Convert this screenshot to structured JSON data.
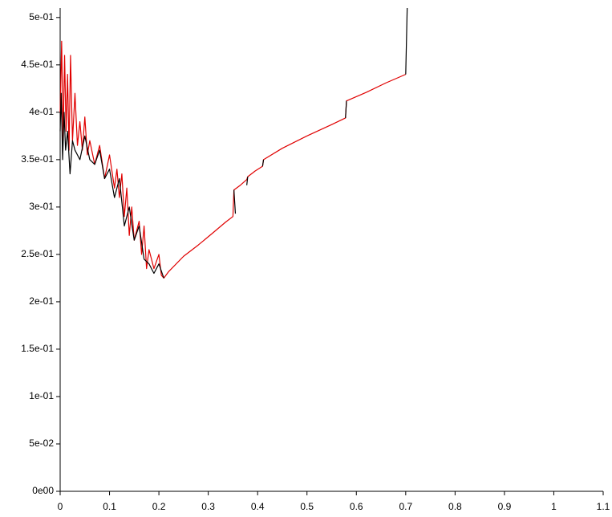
{
  "chart_data": {
    "type": "line",
    "xlim": [
      0,
      1.1
    ],
    "ylim": [
      0,
      0.51
    ],
    "xticks": [
      0,
      0.1,
      0.2,
      0.3,
      0.4,
      0.5,
      0.6,
      0.7,
      0.8,
      0.9,
      1,
      1.1
    ],
    "yticks": [
      {
        "value": 0,
        "label": "0e00"
      },
      {
        "value": 0.05,
        "label": "5e-02"
      },
      {
        "value": 0.1,
        "label": "1e-01"
      },
      {
        "value": 0.15,
        "label": "1.5e-01"
      },
      {
        "value": 0.2,
        "label": "2e-01"
      },
      {
        "value": 0.25,
        "label": "2.5e-01"
      },
      {
        "value": 0.3,
        "label": "3e-01"
      },
      {
        "value": 0.35,
        "label": "3.5e-01"
      },
      {
        "value": 0.4,
        "label": "4e-01"
      },
      {
        "value": 0.45,
        "label": "4.5e-01"
      },
      {
        "value": 0.5,
        "label": "5e-01"
      }
    ],
    "series": [
      {
        "color": "#e00000",
        "x": [
          0,
          0.003,
          0.006,
          0.009,
          0.012,
          0.015,
          0.018,
          0.021,
          0.025,
          0.03,
          0.035,
          0.04,
          0.045,
          0.05,
          0.055,
          0.06,
          0.07,
          0.08,
          0.09,
          0.1,
          0.11,
          0.115,
          0.12,
          0.125,
          0.13,
          0.135,
          0.14,
          0.145,
          0.15,
          0.16,
          0.165,
          0.17,
          0.175,
          0.18,
          0.19,
          0.2,
          0.205,
          0.21,
          0.22,
          0.25,
          0.28,
          0.31,
          0.335,
          0.35,
          0.352,
          0.365,
          0.378,
          0.38,
          0.395,
          0.41,
          0.412,
          0.45,
          0.5,
          0.55,
          0.578,
          0.58,
          0.62,
          0.66,
          0.7
        ],
        "values": [
          0.4,
          0.475,
          0.37,
          0.46,
          0.38,
          0.44,
          0.36,
          0.46,
          0.37,
          0.42,
          0.365,
          0.39,
          0.36,
          0.395,
          0.355,
          0.37,
          0.345,
          0.365,
          0.33,
          0.355,
          0.32,
          0.34,
          0.31,
          0.335,
          0.29,
          0.32,
          0.27,
          0.3,
          0.265,
          0.285,
          0.25,
          0.28,
          0.235,
          0.255,
          0.235,
          0.25,
          0.228,
          0.225,
          0.232,
          0.248,
          0.26,
          0.273,
          0.284,
          0.29,
          0.318,
          0.323,
          0.329,
          0.332,
          0.338,
          0.343,
          0.35,
          0.362,
          0.375,
          0.387,
          0.394,
          0.412,
          0.421,
          0.431,
          0.44
        ]
      },
      {
        "color": "#000000",
        "x": [
          0,
          0.002,
          0.005,
          0.008,
          0.011,
          0.015,
          0.02,
          0.025,
          0.03,
          0.04,
          0.05,
          0.06,
          0.07,
          0.08,
          0.09,
          0.1,
          0.11,
          0.12,
          0.13,
          0.14,
          0.15,
          0.16,
          0.17,
          0.18,
          0.19,
          0.2,
          0.21,
          0.3,
          0.352,
          0.355,
          0.36,
          0.378,
          0.38,
          0.39,
          0.41,
          0.412,
          0.5,
          0.578,
          0.58,
          0.6,
          0.7,
          0.703
        ],
        "values": [
          0.38,
          0.42,
          0.35,
          0.4,
          0.36,
          0.38,
          0.335,
          0.37,
          0.36,
          0.35,
          0.375,
          0.35,
          0.345,
          0.36,
          0.33,
          0.34,
          0.31,
          0.33,
          0.28,
          0.3,
          0.265,
          0.28,
          0.245,
          0.24,
          0.23,
          0.24,
          0.225,
          null,
          0.318,
          0.293,
          null,
          0.323,
          0.332,
          null,
          0.343,
          0.35,
          null,
          0.394,
          0.412,
          null,
          0.44,
          0.51
        ]
      }
    ]
  }
}
